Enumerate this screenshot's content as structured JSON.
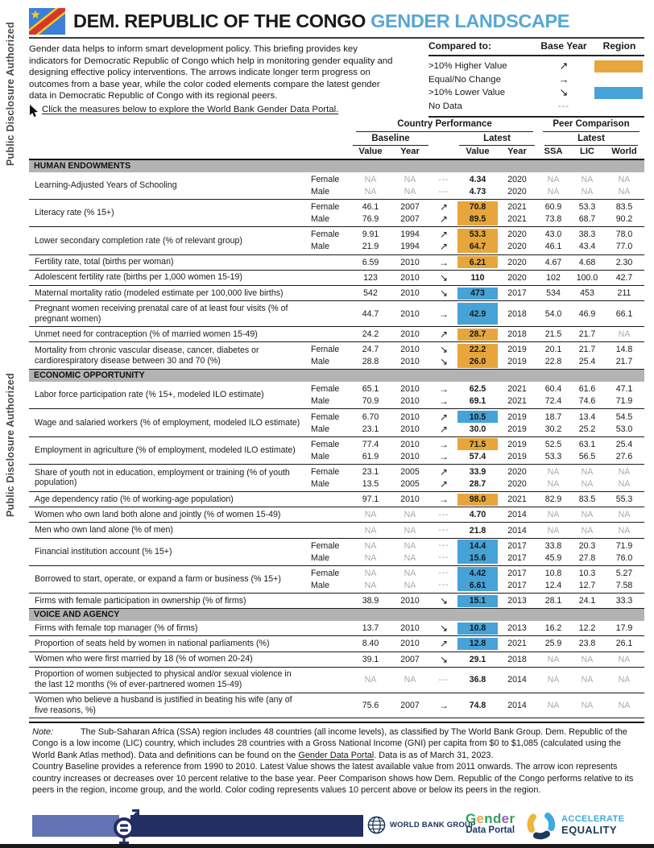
{
  "colors": {
    "orange": "#E6A63C",
    "blue": "#46A2D7",
    "accent": "#57A7D4"
  },
  "page": {
    "sidebar_text": "Public Disclosure Authorized",
    "title_black": "DEM. REPUBLIC OF THE CONGO",
    "title_accent": "GENDER LANDSCAPE",
    "intro": "Gender data helps to inform smart development policy. This briefing provides key indicators for Democratic Republic of Congo which help in monitoring gender equality and designing effective policy interventions. The arrows indicate longer term progress on outcomes from a base year, while the color coded elements compare the latest gender data in Democratic Republic of Congo with its regional peers.",
    "click_line": "Click the measures below to explore the World Bank Gender Data Portal."
  },
  "legend": {
    "header": {
      "compared": "Compared to:",
      "base_year": "Base Year",
      "region": "Region"
    },
    "rows": [
      {
        "label": ">10% Higher Value",
        "arrow": "↗",
        "swatch": "orange"
      },
      {
        "label": "Equal/No Change",
        "arrow": "→",
        "swatch": null
      },
      {
        "label": ">10% Lower Value",
        "arrow": "↘",
        "swatch": "blue"
      },
      {
        "label": "No Data",
        "arrow": "---",
        "swatch": null
      }
    ]
  },
  "table": {
    "head": {
      "country": "Country Performance",
      "peer": "Peer Comparison",
      "baseline": "Baseline",
      "latest": "Latest",
      "latest_peer": "Latest",
      "cols": {
        "bv": "Value",
        "by": "Year",
        "lv": "Value",
        "ly": "Year",
        "ssa": "SSA",
        "lic": "LIC",
        "world": "World"
      }
    },
    "sections": [
      {
        "title": "HUMAN ENDOWMENTS",
        "rows": [
          {
            "label": "Learning-Adjusted Years of Schooling",
            "subs": [
              {
                "g": "Female",
                "bv": "NA",
                "by": "NA",
                "ar": "---",
                "lv": "4.34",
                "ly": "2020",
                "hl": null,
                "ssa": "NA",
                "lic": "NA",
                "w": "NA"
              },
              {
                "g": "Male",
                "bv": "NA",
                "by": "NA",
                "ar": "---",
                "lv": "4.73",
                "ly": "2020",
                "hl": null,
                "ssa": "NA",
                "lic": "NA",
                "w": "NA"
              }
            ]
          },
          {
            "label": "Literacy rate (% 15+)",
            "subs": [
              {
                "g": "Female",
                "bv": "46.1",
                "by": "2007",
                "ar": "↗",
                "lv": "70.8",
                "ly": "2021",
                "hl": "orange",
                "ssa": "60.9",
                "lic": "53.3",
                "w": "83.5"
              },
              {
                "g": "Male",
                "bv": "76.9",
                "by": "2007",
                "ar": "↗",
                "lv": "89.5",
                "ly": "2021",
                "hl": "orange",
                "ssa": "73.8",
                "lic": "68.7",
                "w": "90.2"
              }
            ]
          },
          {
            "label": "Lower secondary completion rate (% of relevant group)",
            "subs": [
              {
                "g": "Female",
                "bv": "9.91",
                "by": "1994",
                "ar": "↗",
                "lv": "53.3",
                "ly": "2020",
                "hl": "orange",
                "ssa": "43.0",
                "lic": "38.3",
                "w": "78.0"
              },
              {
                "g": "Male",
                "bv": "21.9",
                "by": "1994",
                "ar": "↗",
                "lv": "64.7",
                "ly": "2020",
                "hl": "orange",
                "ssa": "46.1",
                "lic": "43.4",
                "w": "77.0"
              }
            ]
          },
          {
            "label": "Fertility rate, total (births per woman)",
            "subs": [
              {
                "g": "",
                "bv": "6.59",
                "by": "2010",
                "ar": "→",
                "lv": "6.21",
                "ly": "2020",
                "hl": "orange",
                "ssa": "4.67",
                "lic": "4.68",
                "w": "2.30"
              }
            ]
          },
          {
            "label": "Adolescent fertility rate (births per 1,000 women 15-19)",
            "subs": [
              {
                "g": "",
                "bv": "123",
                "by": "2010",
                "ar": "↘",
                "lv": "110",
                "ly": "2020",
                "hl": null,
                "ssa": "102",
                "lic": "100.0",
                "w": "42.7"
              }
            ]
          },
          {
            "label": "Maternal mortality ratio (modeled estimate per 100,000 live births)",
            "subs": [
              {
                "g": "",
                "bv": "542",
                "by": "2010",
                "ar": "↘",
                "lv": "473",
                "ly": "2017",
                "hl": "blue",
                "ssa": "534",
                "lic": "453",
                "w": "211"
              }
            ]
          },
          {
            "label": "Pregnant women receiving prenatal care of at least four visits (% of pregnant women)",
            "subs": [
              {
                "g": "",
                "bv": "44.7",
                "by": "2010",
                "ar": "→",
                "lv": "42.9",
                "ly": "2018",
                "hl": "blue",
                "ssa": "54.0",
                "lic": "46.9",
                "w": "66.1"
              }
            ]
          },
          {
            "label": "Unmet need for contraception (% of married women 15-49)",
            "subs": [
              {
                "g": "",
                "bv": "24.2",
                "by": "2010",
                "ar": "↗",
                "lv": "28.7",
                "ly": "2018",
                "hl": "orange",
                "ssa": "21.5",
                "lic": "21.7",
                "w": "NA"
              }
            ]
          },
          {
            "label": "Mortality from chronic vascular disease, cancer, diabetes or cardiorespiratory disease between 30 and 70 (%)",
            "subs": [
              {
                "g": "Female",
                "bv": "24.7",
                "by": "2010",
                "ar": "↘",
                "lv": "22.2",
                "ly": "2019",
                "hl": "orange",
                "ssa": "20.1",
                "lic": "21.7",
                "w": "14.8"
              },
              {
                "g": "Male",
                "bv": "28.8",
                "by": "2010",
                "ar": "↘",
                "lv": "26.0",
                "ly": "2019",
                "hl": "orange",
                "ssa": "22.8",
                "lic": "25.4",
                "w": "21.7"
              }
            ]
          }
        ]
      },
      {
        "title": "ECONOMIC OPPORTUNITY",
        "rows": [
          {
            "label": "Labor force participation rate (% 15+, modeled ILO estimate)",
            "subs": [
              {
                "g": "Female",
                "bv": "65.1",
                "by": "2010",
                "ar": "→",
                "lv": "62.5",
                "ly": "2021",
                "hl": null,
                "ssa": "60.4",
                "lic": "61.6",
                "w": "47.1"
              },
              {
                "g": "Male",
                "bv": "70.9",
                "by": "2010",
                "ar": "→",
                "lv": "69.1",
                "ly": "2021",
                "hl": null,
                "ssa": "72.4",
                "lic": "74.6",
                "w": "71.9"
              }
            ]
          },
          {
            "label": "Wage and salaried workers (% of employment, modeled ILO estimate)",
            "subs": [
              {
                "g": "Female",
                "bv": "6.70",
                "by": "2010",
                "ar": "↗",
                "lv": "10.5",
                "ly": "2019",
                "hl": "blue",
                "ssa": "18.7",
                "lic": "13.4",
                "w": "54.5"
              },
              {
                "g": "Male",
                "bv": "23.1",
                "by": "2010",
                "ar": "↗",
                "lv": "30.0",
                "ly": "2019",
                "hl": null,
                "ssa": "30.2",
                "lic": "25.2",
                "w": "53.0"
              }
            ]
          },
          {
            "label": "Employment in agriculture (% of employment, modeled ILO estimate)",
            "subs": [
              {
                "g": "Female",
                "bv": "77.4",
                "by": "2010",
                "ar": "→",
                "lv": "71.5",
                "ly": "2019",
                "hl": "orange",
                "ssa": "52.5",
                "lic": "63.1",
                "w": "25.4"
              },
              {
                "g": "Male",
                "bv": "61.9",
                "by": "2010",
                "ar": "→",
                "lv": "57.4",
                "ly": "2019",
                "hl": null,
                "ssa": "53.3",
                "lic": "56.5",
                "w": "27.6"
              }
            ]
          },
          {
            "label": "Share of youth not in education, employment or training (% of youth population)",
            "subs": [
              {
                "g": "Female",
                "bv": "23.1",
                "by": "2005",
                "ar": "↗",
                "lv": "33.9",
                "ly": "2020",
                "hl": null,
                "ssa": "NA",
                "lic": "NA",
                "w": "NA"
              },
              {
                "g": "Male",
                "bv": "13.5",
                "by": "2005",
                "ar": "↗",
                "lv": "28.7",
                "ly": "2020",
                "hl": null,
                "ssa": "NA",
                "lic": "NA",
                "w": "NA"
              }
            ]
          },
          {
            "label": "Age dependency ratio (% of working-age population)",
            "subs": [
              {
                "g": "",
                "bv": "97.1",
                "by": "2010",
                "ar": "→",
                "lv": "98.0",
                "ly": "2021",
                "hl": "orange",
                "ssa": "82.9",
                "lic": "83.5",
                "w": "55.3"
              }
            ]
          },
          {
            "label": "Women who own land both alone and jointly (% of women 15-49)",
            "subs": [
              {
                "g": "",
                "bv": "NA",
                "by": "NA",
                "ar": "---",
                "lv": "4.70",
                "ly": "2014",
                "hl": null,
                "ssa": "NA",
                "lic": "NA",
                "w": "NA"
              }
            ]
          },
          {
            "label": "Men who own land alone (% of men)",
            "subs": [
              {
                "g": "",
                "bv": "NA",
                "by": "NA",
                "ar": "---",
                "lv": "21.8",
                "ly": "2014",
                "hl": null,
                "ssa": "NA",
                "lic": "NA",
                "w": "NA"
              }
            ]
          },
          {
            "label": "Financial institution account (% 15+)",
            "subs": [
              {
                "g": "Female",
                "bv": "NA",
                "by": "NA",
                "ar": "---",
                "lv": "14.4",
                "ly": "2017",
                "hl": "blue",
                "ssa": "33.8",
                "lic": "20.3",
                "w": "71.9"
              },
              {
                "g": "Male",
                "bv": "NA",
                "by": "NA",
                "ar": "---",
                "lv": "15.6",
                "ly": "2017",
                "hl": "blue",
                "ssa": "45.9",
                "lic": "27.8",
                "w": "76.0"
              }
            ]
          },
          {
            "label": "Borrowed to start, operate, or expand a farm or business (% 15+)",
            "subs": [
              {
                "g": "Female",
                "bv": "NA",
                "by": "NA",
                "ar": "---",
                "lv": "4.42",
                "ly": "2017",
                "hl": "blue",
                "ssa": "10.8",
                "lic": "10.3",
                "w": "5.27"
              },
              {
                "g": "Male",
                "bv": "NA",
                "by": "NA",
                "ar": "---",
                "lv": "6.61",
                "ly": "2017",
                "hl": "blue",
                "ssa": "12.4",
                "lic": "12.7",
                "w": "7.58"
              }
            ]
          },
          {
            "label": "Firms with female participation in ownership (% of firms)",
            "subs": [
              {
                "g": "",
                "bv": "38.9",
                "by": "2010",
                "ar": "↘",
                "lv": "15.1",
                "ly": "2013",
                "hl": "blue",
                "ssa": "28.1",
                "lic": "24.1",
                "w": "33.3"
              }
            ]
          }
        ]
      },
      {
        "title": "VOICE AND AGENCY",
        "rows": [
          {
            "label": "Firms with female top manager (% of firms)",
            "subs": [
              {
                "g": "",
                "bv": "13.7",
                "by": "2010",
                "ar": "↘",
                "lv": "10.8",
                "ly": "2013",
                "hl": "blue",
                "ssa": "16.2",
                "lic": "12.2",
                "w": "17.9"
              }
            ]
          },
          {
            "label": "Proportion of seats held by women in national parliaments (%)",
            "subs": [
              {
                "g": "",
                "bv": "8.40",
                "by": "2010",
                "ar": "↗",
                "lv": "12.8",
                "ly": "2021",
                "hl": "blue",
                "ssa": "25.9",
                "lic": "23.8",
                "w": "26.1"
              }
            ]
          },
          {
            "label": "Women who were first married by 18 (% of women 20-24)",
            "subs": [
              {
                "g": "",
                "bv": "39.1",
                "by": "2007",
                "ar": "↘",
                "lv": "29.1",
                "ly": "2018",
                "hl": null,
                "ssa": "NA",
                "lic": "NA",
                "w": "NA"
              }
            ]
          },
          {
            "label": "Proportion of women subjected to physical and/or sexual violence in the last 12 months (% of ever-partnered women 15-49)",
            "subs": [
              {
                "g": "",
                "bv": "NA",
                "by": "NA",
                "ar": "---",
                "lv": "36.8",
                "ly": "2014",
                "hl": null,
                "ssa": "NA",
                "lic": "NA",
                "w": "NA"
              }
            ]
          },
          {
            "label": "Women who believe a husband is justified in beating his wife (any of five reasons, %)",
            "subs": [
              {
                "g": "",
                "bv": "75.6",
                "by": "2007",
                "ar": "→",
                "lv": "74.8",
                "ly": "2014",
                "hl": null,
                "ssa": "NA",
                "lic": "NA",
                "w": "NA"
              }
            ]
          }
        ]
      }
    ]
  },
  "note": {
    "label": "Note:",
    "p1_pre": "The Sub-Saharan Africa (SSA) region includes 48 countries (all income levels), as classified by The World Bank Group. Dem. Republic of the Congo is a low income (LIC) country, which includes 28 countries with a Gross National Income (GNI) per capita from $0 to $1,085 (calculated using the World Bank Atlas method). Data and definitions can be found on the ",
    "p1_link": "Gender Data Portal",
    "p1_post": ". Data is as of March 31, 2023.",
    "p2": "Country Baseline provides a reference from 1990 to 2010. Latest Value shows the latest available value from 2011 onwards. The arrow icon represents country increases or decreases over 10 percent relative to the base year. Peer Comparison shows how Dem. Republic of the Congo performs relative to its peers in the region, income group, and the world. Color coding represents values 10 percent above or below its peers in the region."
  },
  "footer": {
    "worldbank": "WORLD BANK GROUP",
    "gdp_top": [
      {
        "ch": "G",
        "c": "#35A05D"
      },
      {
        "ch": "e",
        "c": "#F0A63C"
      },
      {
        "ch": "n",
        "c": "#35A05D"
      },
      {
        "ch": "d",
        "c": "#35A05D"
      },
      {
        "ch": "e",
        "c": "#9A5CC4"
      },
      {
        "ch": "r",
        "c": "#35A05D"
      }
    ],
    "gdp_bottom": "Data Portal",
    "accel_line1": "ACCELERATE",
    "accel_line2": "EQUALITY"
  }
}
